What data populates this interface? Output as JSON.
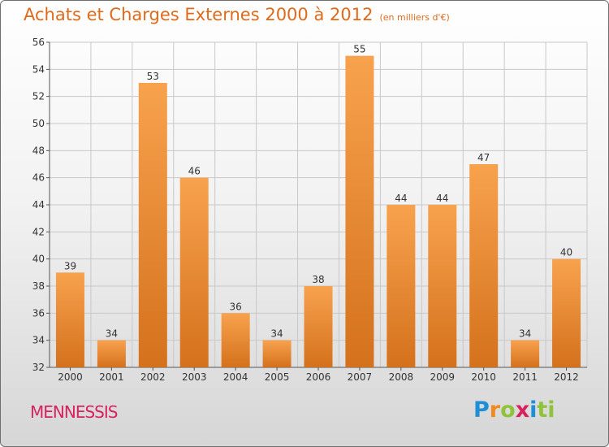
{
  "header": {
    "title": "Achats et Charges Externes 2000 à 2012",
    "subtitle": "(en milliers d'€)"
  },
  "footer": {
    "commune": "MENNESSIS",
    "logo_letters": [
      "P",
      "r",
      "o",
      "x",
      "i",
      "ti"
    ]
  },
  "colors": {
    "bar_light": "#f8a24e",
    "bar_dark": "#d4711c",
    "title": "#e06a1a",
    "commune": "#d8225e"
  },
  "chart_data": {
    "type": "bar",
    "title": "Achats et Charges Externes 2000 à 2012",
    "subtitle": "(en milliers d'€)",
    "categories": [
      "2000",
      "2001",
      "2002",
      "2003",
      "2004",
      "2005",
      "2006",
      "2007",
      "2008",
      "2009",
      "2010",
      "2011",
      "2012"
    ],
    "values": [
      39,
      34,
      53,
      46,
      36,
      34,
      38,
      55,
      44,
      44,
      47,
      34,
      40
    ],
    "ylim": [
      32,
      56
    ],
    "yticks": [
      32,
      34,
      36,
      38,
      40,
      42,
      44,
      46,
      48,
      50,
      52,
      54,
      56
    ],
    "grid": true,
    "legend": "none"
  }
}
